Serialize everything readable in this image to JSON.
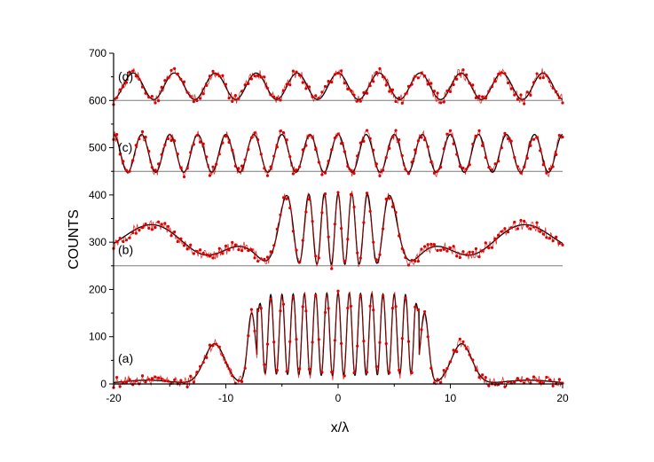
{
  "chart_data": {
    "type": "line",
    "xlabel": "x/λ",
    "ylabel": "COUNTS",
    "xlim": [
      -20,
      20
    ],
    "ylim": [
      0,
      700
    ],
    "x_ticks": [
      -20,
      -10,
      0,
      10,
      20
    ],
    "y_ticks": [
      0,
      100,
      200,
      300,
      400,
      500,
      600,
      700
    ],
    "grid": false,
    "colors": {
      "data": "#e00000",
      "fit": "#000000",
      "axis": "#000000",
      "baseline": "#7a7a7a"
    },
    "panels": [
      {
        "label": "(a)",
        "baseline": 0,
        "model": "multi-slit",
        "period": 1.0,
        "fringe_amplitude": 185,
        "peaks": [
          {
            "x": -11,
            "height": 85
          },
          {
            "x": -7.7,
            "height": 150
          },
          {
            "x": 7.7,
            "height": 150
          },
          {
            "x": 11,
            "height": 85
          }
        ],
        "data_notes": "shoulders near ±11 at ~65 counts; central fringes ~20 to ~190"
      },
      {
        "label": "(b)",
        "baseline": 250,
        "model": "chirped-cosine",
        "center": 0,
        "period": 1.2,
        "amplitude": 75,
        "offset": 328,
        "envelope_half_width": 13
      },
      {
        "label": "(c)",
        "baseline": 450,
        "model": "cosine",
        "period": 2.5,
        "amplitude": 40,
        "offset": 488
      },
      {
        "label": "(d)",
        "baseline": 600,
        "model": "cosine",
        "period": 3.65,
        "amplitude": 28,
        "offset": 630
      }
    ]
  }
}
